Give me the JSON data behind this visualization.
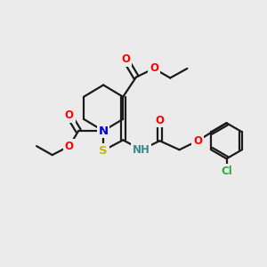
{
  "bg_color": "#ebebeb",
  "bond_color": "#1a1a1a",
  "bond_width": 1.6,
  "atom_colors": {
    "O": "#ff0000",
    "N": "#0000cc",
    "S": "#bbbb00",
    "Cl": "#33aa33",
    "H": "#3a8a8a",
    "C": "#1a1a1a"
  },
  "font_size": 8.5
}
